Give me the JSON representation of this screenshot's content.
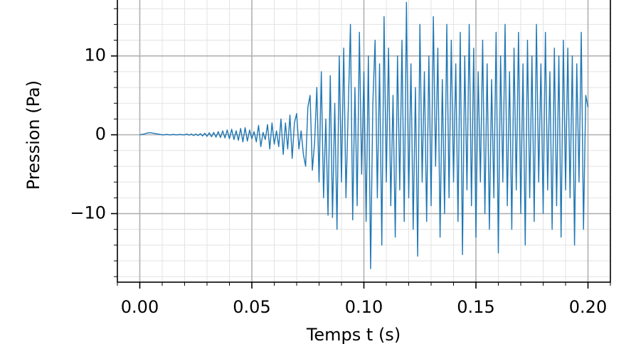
{
  "chart_data": {
    "type": "line",
    "xlabel": "Temps t (s)",
    "ylabel": "Pression (Pa)",
    "xlim": [
      -0.01,
      0.21
    ],
    "ylim": [
      -18.7,
      17.1
    ],
    "xticks": [
      {
        "value": 0,
        "label": "0.00"
      },
      {
        "value": 0.05,
        "label": "0.05"
      },
      {
        "value": 0.1,
        "label": "0.10"
      },
      {
        "value": 0.15,
        "label": "0.15"
      },
      {
        "value": 0.2,
        "label": "0.20"
      }
    ],
    "yticks": [
      {
        "value": -10,
        "label": "−10"
      },
      0,
      10
    ],
    "xminorticks": [
      -0.01,
      0.01,
      0.02,
      0.03,
      0.04,
      0.06,
      0.07,
      0.08,
      0.09,
      0.11,
      0.12,
      0.13,
      0.14,
      0.16,
      0.17,
      0.18,
      0.19,
      0.21
    ],
    "yminorticks": [
      -18,
      -16,
      -14,
      -12,
      -8,
      -6,
      -4,
      -2,
      2,
      4,
      6,
      8,
      12,
      14,
      16
    ],
    "grid": true,
    "minor_grid": true,
    "series": [
      {
        "name": "Pression",
        "color": "#1f77b4",
        "x": [
          0,
          0.001,
          0.002,
          0.003,
          0.004,
          0.005,
          0.006,
          0.007,
          0.008,
          0.009,
          0.01,
          0.011,
          0.012,
          0.013,
          0.014,
          0.015,
          0.016,
          0.017,
          0.018,
          0.019,
          0.02,
          0.021,
          0.022,
          0.023,
          0.024,
          0.025,
          0.026,
          0.027,
          0.028,
          0.029,
          0.03,
          0.031,
          0.032,
          0.033,
          0.034,
          0.035,
          0.036,
          0.037,
          0.038,
          0.039,
          0.04,
          0.041,
          0.042,
          0.043,
          0.044,
          0.045,
          0.046,
          0.047,
          0.048,
          0.049,
          0.05,
          0.051,
          0.052,
          0.053,
          0.054,
          0.055,
          0.056,
          0.057,
          0.058,
          0.059,
          0.06,
          0.061,
          0.062,
          0.063,
          0.064,
          0.065,
          0.066,
          0.067,
          0.068,
          0.069,
          0.07,
          0.071,
          0.072,
          0.073,
          0.074,
          0.075,
          0.076,
          0.077,
          0.078,
          0.079,
          0.08,
          0.081,
          0.082,
          0.083,
          0.084,
          0.085,
          0.086,
          0.087,
          0.088,
          0.089,
          0.09,
          0.091,
          0.092,
          0.093,
          0.094,
          0.095,
          0.096,
          0.097,
          0.098,
          0.099,
          0.1,
          0.101,
          0.102,
          0.103,
          0.104,
          0.105,
          0.106,
          0.107,
          0.108,
          0.109,
          0.11,
          0.111,
          0.112,
          0.113,
          0.114,
          0.115,
          0.116,
          0.117,
          0.118,
          0.119,
          0.12,
          0.121,
          0.122,
          0.123,
          0.124,
          0.125,
          0.126,
          0.127,
          0.128,
          0.129,
          0.13,
          0.131,
          0.132,
          0.133,
          0.134,
          0.135,
          0.136,
          0.137,
          0.138,
          0.139,
          0.14,
          0.141,
          0.142,
          0.143,
          0.144,
          0.145,
          0.146,
          0.147,
          0.148,
          0.149,
          0.15,
          0.151,
          0.152,
          0.153,
          0.154,
          0.155,
          0.156,
          0.157,
          0.158,
          0.159,
          0.16,
          0.161,
          0.162,
          0.163,
          0.164,
          0.165,
          0.166,
          0.167,
          0.168,
          0.169,
          0.17,
          0.171,
          0.172,
          0.173,
          0.174,
          0.175,
          0.176,
          0.177,
          0.178,
          0.179,
          0.18,
          0.181,
          0.182,
          0.183,
          0.184,
          0.185,
          0.186,
          0.187,
          0.188,
          0.189,
          0.19,
          0.191,
          0.192,
          0.193,
          0.194,
          0.195,
          0.196,
          0.197,
          0.198,
          0.199,
          0.2
        ],
        "values": [
          0,
          0.05,
          0.1,
          0.2,
          0.25,
          0.25,
          0.2,
          0.15,
          0.1,
          0.05,
          0,
          0,
          0.05,
          0,
          0,
          0.05,
          0,
          0,
          0.05,
          0,
          0,
          0.1,
          -0.05,
          0.1,
          -0.1,
          0.1,
          -0.1,
          0.15,
          -0.15,
          0.2,
          -0.2,
          0.25,
          -0.25,
          0.3,
          -0.3,
          0.4,
          -0.35,
          0.5,
          -0.4,
          0.6,
          -0.5,
          0.7,
          -0.6,
          0.5,
          -0.7,
          0.8,
          -0.9,
          0.9,
          -0.8,
          0.6,
          -0.5,
          0.4,
          -0.9,
          1.2,
          -1.5,
          0.3,
          -0.6,
          1.3,
          -1.8,
          1.5,
          -1.2,
          0.5,
          -1.5,
          2.0,
          -2.5,
          1.5,
          -1.8,
          2.5,
          -3.0,
          1.5,
          2.7,
          -1.8,
          0.5,
          -2.5,
          -4,
          3.5,
          5,
          -4.5,
          -1,
          6,
          -6,
          8,
          -8,
          2,
          -10.2,
          7.5,
          -10.5,
          4,
          -12,
          10,
          -6,
          11,
          -8,
          3,
          14,
          -10.8,
          6,
          -9,
          13,
          -5,
          8,
          -11,
          10,
          -17,
          4,
          12,
          -8,
          9,
          -14,
          15,
          -6,
          11,
          -9,
          5,
          -13,
          10,
          -7,
          12,
          -11,
          16.8,
          -8,
          9,
          -12,
          6,
          -15.4,
          14,
          -6,
          8,
          -11,
          10,
          -9,
          15,
          -4,
          11,
          -13,
          7,
          -10,
          14,
          -8,
          12,
          -6,
          9,
          -11,
          13,
          -15.2,
          10,
          -7,
          14,
          -9,
          11,
          -13,
          8,
          -6,
          12,
          -10,
          9,
          -12,
          7,
          -8,
          13,
          -15,
          10,
          -6,
          14,
          -9,
          8,
          -12,
          11,
          -7,
          13,
          -10,
          9,
          -14,
          12,
          -8,
          10,
          -11,
          14,
          -6,
          9,
          -10,
          13,
          -7,
          8,
          -12,
          11,
          -9,
          10,
          -13,
          12,
          -7,
          11,
          -8,
          10,
          -14,
          9,
          -6,
          13,
          -12,
          5,
          3.5
        ]
      }
    ]
  }
}
